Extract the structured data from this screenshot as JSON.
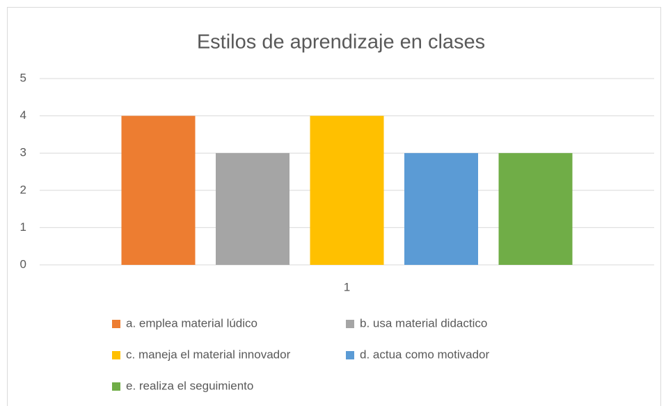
{
  "chart_data": {
    "type": "bar",
    "title": "Estilos de aprendizaje en clases",
    "categories": [
      "1"
    ],
    "series": [
      {
        "name": "a. emplea material lúdico",
        "color": "#ED7D31",
        "values": [
          4
        ]
      },
      {
        "name": "b. usa material didactico",
        "color": "#A5A5A5",
        "values": [
          3
        ]
      },
      {
        "name": "c. maneja el material innovador",
        "color": "#FFC000",
        "values": [
          4
        ]
      },
      {
        "name": "d. actua como motivador",
        "color": "#5B9BD5",
        "values": [
          3
        ]
      },
      {
        "name": "e. realiza el seguimiento",
        "color": "#70AD47",
        "values": [
          3
        ]
      }
    ],
    "ylim": [
      0,
      5
    ],
    "yticks": [
      0,
      1,
      2,
      3,
      4,
      5
    ],
    "grid": true,
    "legend": "bottom"
  }
}
